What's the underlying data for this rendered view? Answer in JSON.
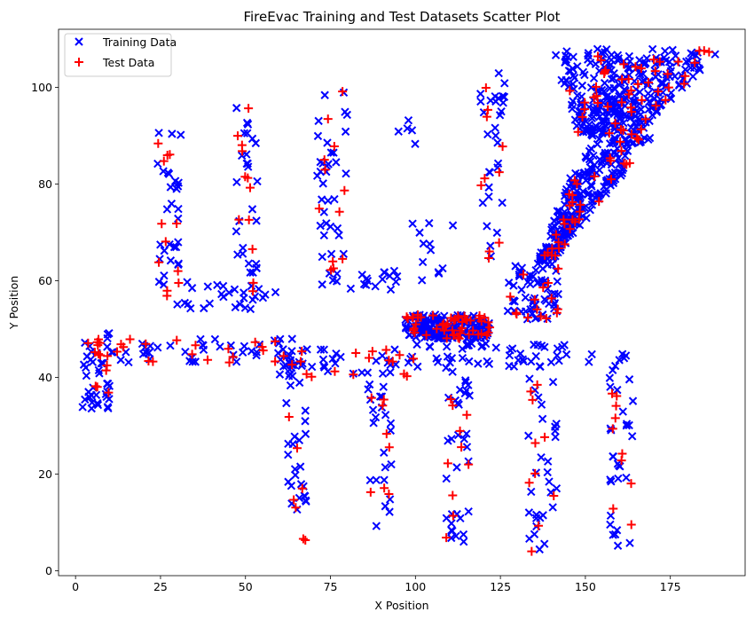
{
  "chart_data": {
    "type": "scatter",
    "title": "FireEvac Training and Test Datasets Scatter Plot",
    "xlabel": "X Position",
    "ylabel": "Y Position",
    "xlim": [
      -5,
      197
    ],
    "ylim": [
      -1,
      112
    ],
    "xticks": [
      0,
      25,
      50,
      75,
      100,
      125,
      150,
      175
    ],
    "yticks": [
      0,
      20,
      40,
      60,
      80,
      100
    ],
    "grid": false,
    "legend_position": "top-left",
    "series": [
      {
        "name": "Training Data",
        "marker": "x",
        "color": "#0000ff",
        "regions": [
          {
            "kind": "vline",
            "x": [
              2,
              10
            ],
            "y": [
              33,
              50
            ],
            "n": 40
          },
          {
            "kind": "hline",
            "x": [
              10,
              45
            ],
            "y": [
              43,
              48
            ],
            "n": 25
          },
          {
            "kind": "vline",
            "x": [
              24,
              31
            ],
            "y": [
              55,
              93
            ],
            "n": 30
          },
          {
            "kind": "vline",
            "x": [
              47,
              54
            ],
            "y": [
              55,
              97
            ],
            "n": 30
          },
          {
            "kind": "hline",
            "x": [
              32,
              60
            ],
            "y": [
              54,
              60
            ],
            "n": 24
          },
          {
            "kind": "hline",
            "x": [
              45,
              65
            ],
            "y": [
              43,
              48
            ],
            "n": 18
          },
          {
            "kind": "vline",
            "x": [
              71,
              80
            ],
            "y": [
              59,
              100
            ],
            "n": 35
          },
          {
            "kind": "hline",
            "x": [
              65,
              95
            ],
            "y": [
              58,
              63
            ],
            "n": 18
          },
          {
            "kind": "hline",
            "x": [
              60,
              100
            ],
            "y": [
              40,
              46
            ],
            "n": 32
          },
          {
            "kind": "vline",
            "x": [
              62,
              68
            ],
            "y": [
              6,
              46
            ],
            "n": 32
          },
          {
            "kind": "vline",
            "x": [
              86,
              93
            ],
            "y": [
              9,
              46
            ],
            "n": 30
          },
          {
            "kind": "vline",
            "x": [
              95,
              100
            ],
            "y": [
              86,
              97
            ],
            "n": 5
          },
          {
            "kind": "hline",
            "x": [
              98,
              115
            ],
            "y": [
              60,
              73
            ],
            "n": 12
          },
          {
            "kind": "rect",
            "x": [
              97,
              122
            ],
            "y": [
              48,
              53
            ],
            "n": 170
          },
          {
            "kind": "hline",
            "x": [
              100,
              122
            ],
            "y": [
              41,
              47
            ],
            "n": 25
          },
          {
            "kind": "vline",
            "x": [
              109,
              116
            ],
            "y": [
              6,
              40
            ],
            "n": 32
          },
          {
            "kind": "vline",
            "x": [
              119,
              127
            ],
            "y": [
              64,
              103
            ],
            "n": 30
          },
          {
            "kind": "hline",
            "x": [
              122,
              145
            ],
            "y": [
              42,
              47
            ],
            "n": 25
          },
          {
            "kind": "vline",
            "x": [
              133,
              142
            ],
            "y": [
              4,
              40
            ],
            "n": 30
          },
          {
            "kind": "hline",
            "x": [
              150,
              165
            ],
            "y": [
              42,
              46
            ],
            "n": 6
          },
          {
            "kind": "vline",
            "x": [
              157,
              164
            ],
            "y": [
              5,
              43
            ],
            "n": 30
          },
          {
            "kind": "rect",
            "x": [
              127,
              142
            ],
            "y": [
              52,
              64
            ],
            "n": 60
          },
          {
            "kind": "wedge",
            "xl0": 136,
            "xl1": 150,
            "xr0": 140,
            "xr1": 170,
            "y": [
              64,
              90
            ],
            "n": 240
          },
          {
            "kind": "wedge",
            "xl0": 148,
            "xl1": 140,
            "xr0": 165,
            "xr1": 190,
            "y": [
              90,
              108
            ],
            "n": 300
          }
        ]
      },
      {
        "name": "Test Data",
        "marker": "+",
        "color": "#ff0000",
        "regions": [
          {
            "kind": "vline",
            "x": [
              2,
              10
            ],
            "y": [
              33,
              50
            ],
            "n": 14
          },
          {
            "kind": "hline",
            "x": [
              10,
              45
            ],
            "y": [
              43,
              48
            ],
            "n": 12
          },
          {
            "kind": "vline",
            "x": [
              24,
              31
            ],
            "y": [
              55,
              93
            ],
            "n": 12
          },
          {
            "kind": "vline",
            "x": [
              47,
              54
            ],
            "y": [
              55,
              97
            ],
            "n": 12
          },
          {
            "kind": "hline",
            "x": [
              45,
              65
            ],
            "y": [
              43,
              48
            ],
            "n": 8
          },
          {
            "kind": "vline",
            "x": [
              71,
              80
            ],
            "y": [
              59,
              100
            ],
            "n": 12
          },
          {
            "kind": "hline",
            "x": [
              60,
              100
            ],
            "y": [
              40,
              46
            ],
            "n": 12
          },
          {
            "kind": "vline",
            "x": [
              62,
              68
            ],
            "y": [
              6,
              46
            ],
            "n": 10
          },
          {
            "kind": "vline",
            "x": [
              86,
              93
            ],
            "y": [
              9,
              46
            ],
            "n": 10
          },
          {
            "kind": "rect",
            "x": [
              97,
              122
            ],
            "y": [
              48,
              53
            ],
            "n": 50
          },
          {
            "kind": "vline",
            "x": [
              109,
              116
            ],
            "y": [
              6,
              40
            ],
            "n": 10
          },
          {
            "kind": "vline",
            "x": [
              119,
              127
            ],
            "y": [
              64,
              103
            ],
            "n": 10
          },
          {
            "kind": "vline",
            "x": [
              133,
              142
            ],
            "y": [
              4,
              40
            ],
            "n": 10
          },
          {
            "kind": "vline",
            "x": [
              157,
              164
            ],
            "y": [
              5,
              43
            ],
            "n": 10
          },
          {
            "kind": "rect",
            "x": [
              127,
              142
            ],
            "y": [
              52,
              64
            ],
            "n": 15
          },
          {
            "kind": "wedge",
            "xl0": 136,
            "xl1": 150,
            "xr0": 140,
            "xr1": 170,
            "y": [
              64,
              90
            ],
            "n": 35
          },
          {
            "kind": "wedge",
            "xl0": 148,
            "xl1": 140,
            "xr0": 165,
            "xr1": 190,
            "y": [
              90,
              108
            ],
            "n": 50
          }
        ]
      }
    ]
  }
}
